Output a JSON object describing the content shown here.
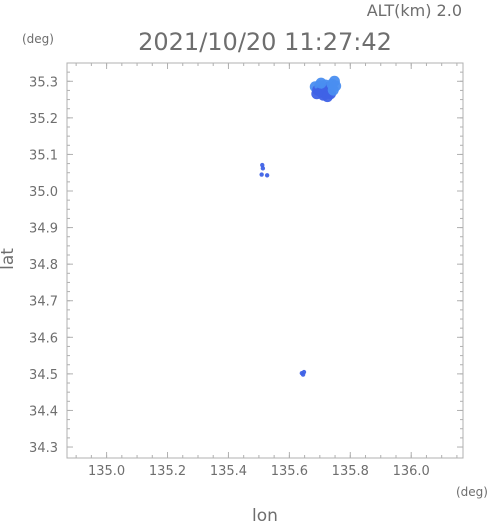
{
  "header": {
    "alt_label": "ALT(km)  2.0",
    "timestamp": "2021/10/20 11:27:42"
  },
  "chart_data": {
    "type": "scatter",
    "xlabel": "lon",
    "ylabel": "lat",
    "x_unit": "(deg)",
    "y_unit": "(deg)",
    "xlim": [
      134.87,
      136.17
    ],
    "ylim": [
      34.27,
      35.35
    ],
    "x_ticks": [
      135.0,
      135.2,
      135.4,
      135.6,
      135.8,
      136.0
    ],
    "x_tick_labels": [
      "135.0",
      "135.2",
      "135.4",
      "135.6",
      "135.8",
      "136.0"
    ],
    "y_ticks": [
      34.3,
      34.4,
      34.5,
      34.6,
      34.7,
      34.8,
      34.9,
      35.0,
      35.1,
      35.2,
      35.3
    ],
    "y_tick_labels": [
      "34.3",
      "34.4",
      "34.5",
      "34.6",
      "34.7",
      "34.8",
      "34.9",
      "35.0",
      "35.1",
      "35.2",
      "35.3"
    ],
    "grid": false,
    "colors": {
      "echo_light": "#4a8ef0",
      "echo_mid": "#3f62e6",
      "echo_dark": "#3346dc",
      "axis": "#b0b0b0",
      "text": "#6e6e6e"
    },
    "echoes": [
      {
        "lon": 135.685,
        "lat": 35.285,
        "intensity": 2
      },
      {
        "lon": 135.693,
        "lat": 35.276,
        "intensity": 3
      },
      {
        "lon": 135.7,
        "lat": 35.288,
        "intensity": 2
      },
      {
        "lon": 135.705,
        "lat": 35.27,
        "intensity": 3
      },
      {
        "lon": 135.71,
        "lat": 35.281,
        "intensity": 3
      },
      {
        "lon": 135.712,
        "lat": 35.262,
        "intensity": 3
      },
      {
        "lon": 135.718,
        "lat": 35.29,
        "intensity": 2
      },
      {
        "lon": 135.722,
        "lat": 35.272,
        "intensity": 3
      },
      {
        "lon": 135.725,
        "lat": 35.258,
        "intensity": 3
      },
      {
        "lon": 135.73,
        "lat": 35.283,
        "intensity": 3
      },
      {
        "lon": 135.735,
        "lat": 35.266,
        "intensity": 3
      },
      {
        "lon": 135.74,
        "lat": 35.292,
        "intensity": 2
      },
      {
        "lon": 135.744,
        "lat": 35.276,
        "intensity": 2
      },
      {
        "lon": 135.748,
        "lat": 35.3,
        "intensity": 1
      },
      {
        "lon": 135.752,
        "lat": 35.287,
        "intensity": 1
      },
      {
        "lon": 135.704,
        "lat": 35.295,
        "intensity": 2
      },
      {
        "lon": 135.69,
        "lat": 35.266,
        "intensity": 3
      },
      {
        "lon": 135.511,
        "lat": 35.071,
        "intensity": 3
      },
      {
        "lon": 135.513,
        "lat": 35.062,
        "intensity": 3
      },
      {
        "lon": 135.509,
        "lat": 35.045,
        "intensity": 3
      },
      {
        "lon": 135.527,
        "lat": 35.043,
        "intensity": 3
      },
      {
        "lon": 135.641,
        "lat": 34.502,
        "intensity": 3
      },
      {
        "lon": 135.648,
        "lat": 34.505,
        "intensity": 3
      },
      {
        "lon": 135.645,
        "lat": 34.498,
        "intensity": 3
      }
    ]
  }
}
